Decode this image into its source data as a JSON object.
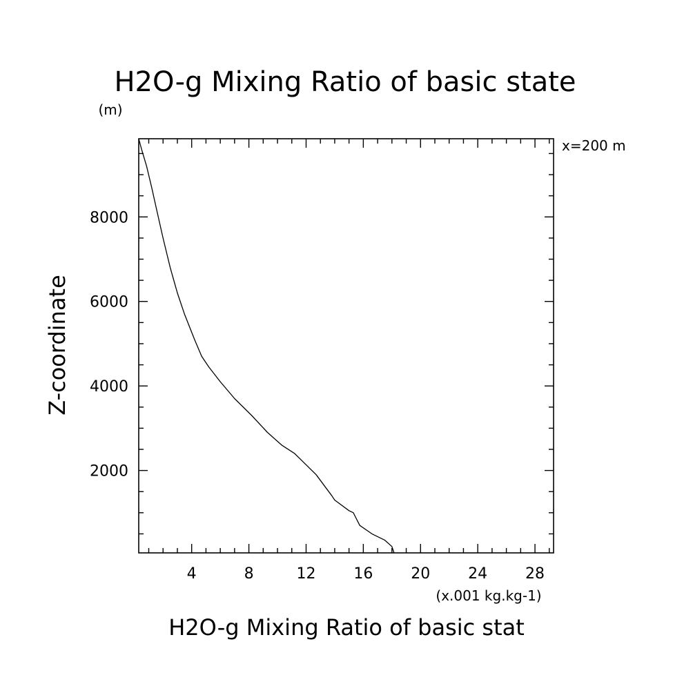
{
  "chart_data": {
    "type": "line",
    "title": "H2O-g Mixing Ratio of basic state",
    "ylabel_unit": "(m)",
    "xlabel": "H2O-g Mixing Ratio of basic stat",
    "xlabel_unit": "(x.001 kg.kg-1)",
    "ylabel": "Z-coordinate",
    "annotation": "x=200 m",
    "xlim": [
      0.3,
      29.3
    ],
    "ylim": [
      50,
      9850
    ],
    "xticks": [
      4,
      8,
      12,
      16,
      20,
      24,
      28
    ],
    "xtick_labels": [
      "4",
      "8",
      "12",
      "16",
      "20",
      "24",
      "28"
    ],
    "yticks": [
      2000,
      4000,
      6000,
      8000
    ],
    "ytick_labels": [
      "2000",
      "4000",
      "6000",
      "8000"
    ],
    "x_minor_step": 1,
    "y_minor_step": 500,
    "grid": false,
    "series": [
      {
        "x": [
          18.15,
          18.0,
          17.5,
          16.6,
          15.75,
          15.45,
          15.3,
          15.0,
          14.0,
          13.8,
          12.7,
          11.5,
          11.2,
          10.3,
          9.3,
          8.2,
          7.0,
          6.0,
          5.2,
          4.7,
          4.2,
          3.5,
          3.0,
          2.5,
          2.0,
          1.6,
          1.2,
          0.85,
          0.5,
          0.3
        ],
        "y": [
          50,
          200,
          350,
          500,
          700,
          900,
          1000,
          1050,
          1300,
          1400,
          1900,
          2300,
          2400,
          2600,
          2900,
          3300,
          3700,
          4100,
          4450,
          4700,
          5100,
          5700,
          6200,
          6800,
          7500,
          8100,
          8700,
          9200,
          9600,
          9850
        ]
      }
    ]
  }
}
